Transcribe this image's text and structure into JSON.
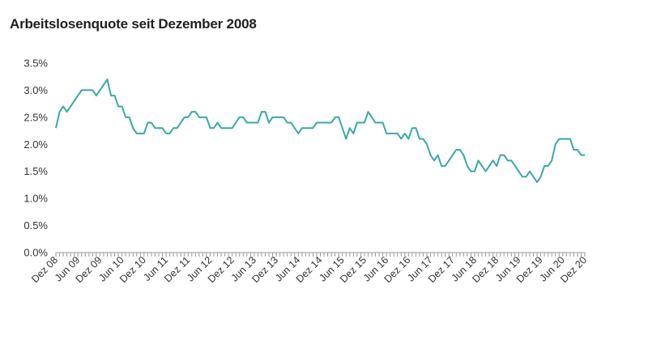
{
  "chart_data": {
    "type": "line",
    "title": "Arbeitslosenquote seit Dezember 2008",
    "xlabel": "",
    "ylabel": "",
    "ylim": [
      0,
      3.5
    ],
    "yticks": [
      "0.0%",
      "0.5%",
      "1.0%",
      "1.5%",
      "2.0%",
      "2.5%",
      "3.0%",
      "3.5%"
    ],
    "xticks": [
      "Dez 08",
      "Jun 09",
      "Dez 09",
      "Jun 10",
      "Dez 10",
      "Jun 11",
      "Dez 11",
      "Jun 12",
      "Dez 12",
      "Jun 13",
      "Dez 13",
      "Jun 14",
      "Dez 14",
      "Jun 15",
      "Dez 15",
      "Jun 16",
      "Dez 16",
      "Jun 17",
      "Dez 17",
      "Jun 18",
      "Dez 18",
      "Jun 19",
      "Dez 19",
      "Jun 20",
      "Dez 20"
    ],
    "start": "Dez 08",
    "end": "Dez 20",
    "frequency": "monthly",
    "grid": false,
    "legend": "none",
    "line_color": "#3aa8a5",
    "series": [
      {
        "values": [
          2.3,
          2.6,
          2.7,
          2.6,
          2.7,
          2.8,
          2.9,
          3.0,
          3.0,
          3.0,
          3.0,
          2.9,
          3.0,
          3.1,
          3.2,
          2.9,
          2.9,
          2.7,
          2.7,
          2.5,
          2.5,
          2.3,
          2.2,
          2.2,
          2.2,
          2.4,
          2.4,
          2.3,
          2.3,
          2.3,
          2.2,
          2.2,
          2.3,
          2.3,
          2.4,
          2.5,
          2.5,
          2.6,
          2.6,
          2.5,
          2.5,
          2.5,
          2.3,
          2.3,
          2.4,
          2.3,
          2.3,
          2.3,
          2.3,
          2.4,
          2.5,
          2.5,
          2.4,
          2.4,
          2.4,
          2.4,
          2.6,
          2.6,
          2.4,
          2.5,
          2.5,
          2.5,
          2.5,
          2.4,
          2.4,
          2.3,
          2.2,
          2.3,
          2.3,
          2.3,
          2.3,
          2.4,
          2.4,
          2.4,
          2.4,
          2.4,
          2.5,
          2.5,
          2.3,
          2.1,
          2.3,
          2.2,
          2.4,
          2.4,
          2.4,
          2.6,
          2.5,
          2.4,
          2.4,
          2.4,
          2.2,
          2.2,
          2.2,
          2.2,
          2.1,
          2.2,
          2.1,
          2.3,
          2.3,
          2.1,
          2.1,
          2.0,
          1.8,
          1.7,
          1.8,
          1.6,
          1.6,
          1.7,
          1.8,
          1.9,
          1.9,
          1.8,
          1.6,
          1.5,
          1.5,
          1.7,
          1.6,
          1.5,
          1.6,
          1.7,
          1.6,
          1.8,
          1.8,
          1.7,
          1.7,
          1.6,
          1.5,
          1.4,
          1.4,
          1.5,
          1.4,
          1.3,
          1.4,
          1.6,
          1.6,
          1.7,
          2.0,
          2.1,
          2.1,
          2.1,
          2.1,
          1.9,
          1.9,
          1.8,
          1.8
        ]
      }
    ]
  }
}
